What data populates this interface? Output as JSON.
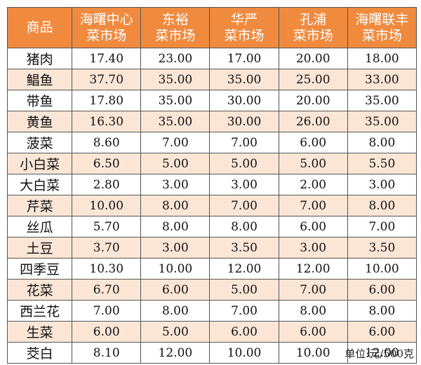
{
  "colors": {
    "header_bg": "#f08a3e",
    "row_alt_bg": "#fbe6d6",
    "row_bg": "#ffffff"
  },
  "headers": [
    "商品",
    "海曙中心\n菜市场",
    "东裕\n菜市场",
    "华严\n菜市场",
    "孔浦\n菜市场",
    "海曙联丰\n菜市场"
  ],
  "rows": [
    {
      "name": "猪肉",
      "prices": [
        "17.40",
        "23.00",
        "17.00",
        "20.00",
        "18.00"
      ]
    },
    {
      "name": "鲳鱼",
      "prices": [
        "37.70",
        "35.00",
        "35.00",
        "25.00",
        "33.00"
      ]
    },
    {
      "name": "带鱼",
      "prices": [
        "17.80",
        "35.00",
        "30.00",
        "20.00",
        "35.00"
      ]
    },
    {
      "name": "黄鱼",
      "prices": [
        "16.30",
        "35.00",
        "30.00",
        "26.00",
        "35.00"
      ]
    },
    {
      "name": "菠菜",
      "prices": [
        "8.60",
        "7.00",
        "7.00",
        "6.00",
        "8.00"
      ]
    },
    {
      "name": "小白菜",
      "prices": [
        "6.50",
        "5.00",
        "5.00",
        "5.00",
        "5.50"
      ]
    },
    {
      "name": "大白菜",
      "prices": [
        "2.80",
        "3.00",
        "3.00",
        "2.00",
        "3.00"
      ]
    },
    {
      "name": "芹菜",
      "prices": [
        "10.00",
        "8.00",
        "7.00",
        "7.00",
        "8.00"
      ]
    },
    {
      "name": "丝瓜",
      "prices": [
        "5.70",
        "8.00",
        "8.00",
        "6.00",
        "7.00"
      ]
    },
    {
      "name": "土豆",
      "prices": [
        "3.70",
        "3.00",
        "3.50",
        "3.00",
        "3.50"
      ]
    },
    {
      "name": "四季豆",
      "prices": [
        "10.30",
        "10.00",
        "12.00",
        "12.00",
        "10.00"
      ]
    },
    {
      "name": "花菜",
      "prices": [
        "6.70",
        "6.00",
        "5.00",
        "7.00",
        "6.00"
      ]
    },
    {
      "name": "西兰花",
      "prices": [
        "7.00",
        "8.00",
        "7.00",
        "8.00",
        "8.00"
      ]
    },
    {
      "name": "生菜",
      "prices": [
        "6.00",
        "5.00",
        "6.00",
        "6.00",
        "6.00"
      ]
    },
    {
      "name": "茭白",
      "prices": [
        "8.10",
        "12.00",
        "10.00",
        "10.00",
        "12.00"
      ]
    }
  ],
  "unit": "单位:元/500克"
}
